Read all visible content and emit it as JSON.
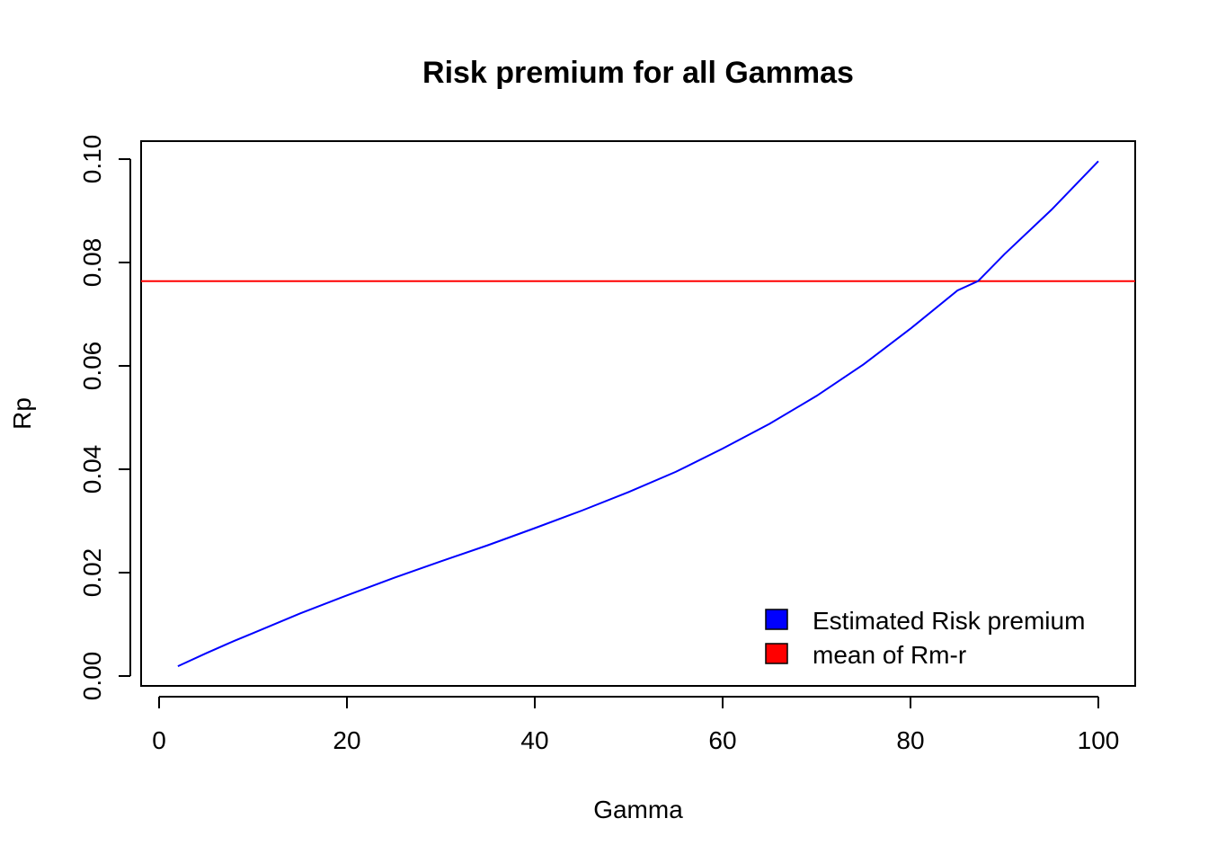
{
  "chart_data": {
    "type": "line",
    "title": "Risk premium for all Gammas",
    "xlabel": "Gamma",
    "ylabel": "Rp",
    "xlim": [
      0,
      100
    ],
    "ylim": [
      0,
      0.1
    ],
    "x_ticks": [
      0,
      20,
      40,
      60,
      80,
      100
    ],
    "x_tick_labels": [
      "0",
      "20",
      "40",
      "60",
      "80",
      "100"
    ],
    "y_ticks": [
      0,
      0.02,
      0.04,
      0.06,
      0.08,
      0.1
    ],
    "y_tick_labels": [
      "0.00",
      "0.02",
      "0.04",
      "0.06",
      "0.08",
      "0.10"
    ],
    "grid": false,
    "legend_position": "bottom-right",
    "series": [
      {
        "name": "Estimated Risk premium",
        "color": "#0000ff",
        "x": [
          2,
          5,
          8,
          10,
          15,
          20,
          25,
          30,
          35,
          40,
          45,
          50,
          55,
          60,
          65,
          70,
          75,
          80,
          85,
          87.2,
          90,
          95,
          100
        ],
        "y": [
          0.0019,
          0.0044,
          0.0068,
          0.0083,
          0.0121,
          0.0156,
          0.019,
          0.0222,
          0.0253,
          0.0286,
          0.032,
          0.0356,
          0.0395,
          0.044,
          0.0488,
          0.0542,
          0.0603,
          0.0672,
          0.0746,
          0.0764,
          0.0816,
          0.0902,
          0.0996
        ]
      }
    ],
    "hlines": [
      {
        "name": "mean of Rm-r",
        "y": 0.0764,
        "color": "#ff0000"
      }
    ]
  }
}
